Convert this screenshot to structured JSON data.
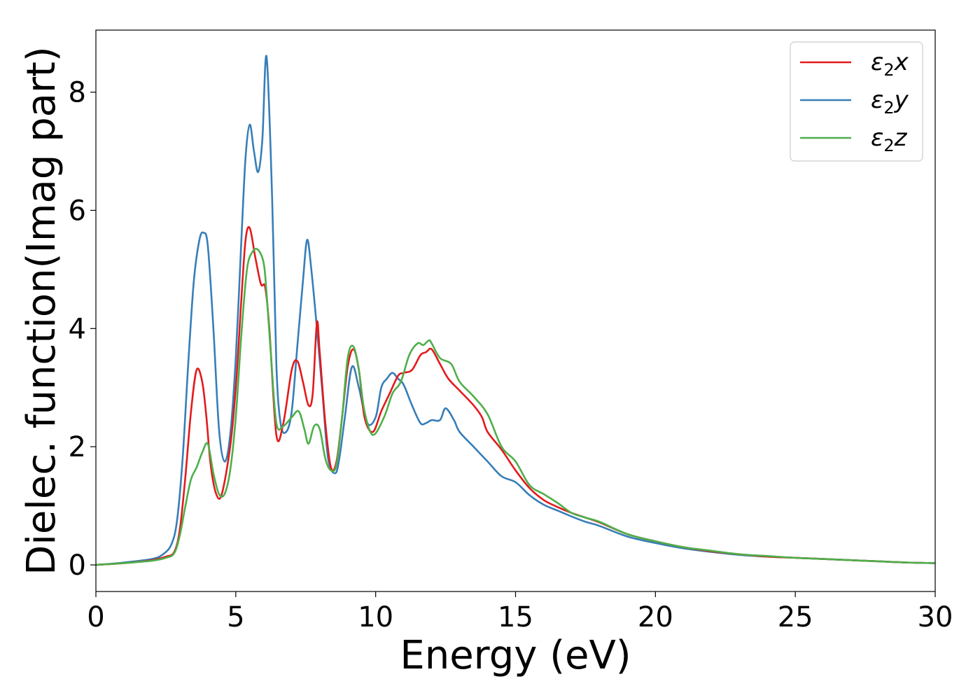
{
  "chart_data": {
    "type": "line",
    "title": "",
    "xlabel": "Energy (eV)",
    "ylabel": "Dielec. function(Imag part)",
    "xlim": [
      0,
      30
    ],
    "ylim": [
      -0.45,
      9.05
    ],
    "xticks": [
      0,
      5,
      10,
      15,
      20,
      25,
      30
    ],
    "yticks": [
      0,
      2,
      4,
      6,
      8
    ],
    "grid": false,
    "legend_position": "top-right",
    "series": [
      {
        "name": "ε2x",
        "legend_main": "ε",
        "legend_sub": "2",
        "legend_tail": "x",
        "color": "#e41a1c",
        "x": [
          0,
          1,
          2,
          2.5,
          2.8,
          3.0,
          3.2,
          3.4,
          3.6,
          3.8,
          3.95,
          4.1,
          4.3,
          4.5,
          4.8,
          5.0,
          5.2,
          5.35,
          5.5,
          5.7,
          5.9,
          6.05,
          6.2,
          6.45,
          6.7,
          7.0,
          7.2,
          7.4,
          7.6,
          7.75,
          7.9,
          8.0,
          8.2,
          8.4,
          8.6,
          8.8,
          9.0,
          9.2,
          9.4,
          9.6,
          9.9,
          10.2,
          10.5,
          10.8,
          11.0,
          11.3,
          11.6,
          11.8,
          12.0,
          12.3,
          12.6,
          13.0,
          13.5,
          13.8,
          14.0,
          14.5,
          15.0,
          15.5,
          16.0,
          16.5,
          17.0,
          17.5,
          18.0,
          19.0,
          20.0,
          21.0,
          22.0,
          23.0,
          24.0,
          25.0,
          26.0,
          27.0,
          28.0,
          29.0,
          30.0
        ],
        "values": [
          0,
          0.03,
          0.08,
          0.14,
          0.22,
          0.6,
          1.5,
          2.6,
          3.3,
          3.1,
          2.5,
          1.7,
          1.2,
          1.2,
          2.0,
          3.0,
          4.5,
          5.5,
          5.7,
          5.2,
          4.75,
          4.7,
          4.0,
          2.2,
          2.4,
          3.3,
          3.45,
          3.1,
          2.7,
          2.9,
          4.1,
          3.6,
          2.4,
          1.65,
          1.75,
          2.5,
          3.35,
          3.65,
          3.3,
          2.5,
          2.25,
          2.6,
          2.9,
          3.2,
          3.25,
          3.3,
          3.55,
          3.6,
          3.65,
          3.4,
          3.15,
          2.95,
          2.7,
          2.5,
          2.25,
          1.95,
          1.6,
          1.3,
          1.1,
          0.98,
          0.88,
          0.8,
          0.72,
          0.52,
          0.4,
          0.3,
          0.23,
          0.18,
          0.14,
          0.12,
          0.1,
          0.08,
          0.06,
          0.04,
          0.03
        ]
      },
      {
        "name": "ε2y",
        "legend_main": "ε",
        "legend_sub": "2",
        "legend_tail": "y",
        "color": "#377eb8",
        "x": [
          0,
          1,
          2,
          2.4,
          2.7,
          2.9,
          3.1,
          3.3,
          3.5,
          3.7,
          3.85,
          4.0,
          4.2,
          4.4,
          4.6,
          4.8,
          5.0,
          5.2,
          5.35,
          5.5,
          5.65,
          5.8,
          5.95,
          6.1,
          6.3,
          6.45,
          6.6,
          6.8,
          7.0,
          7.2,
          7.4,
          7.55,
          7.7,
          7.9,
          8.1,
          8.3,
          8.55,
          8.7,
          8.9,
          9.15,
          9.4,
          9.7,
          10.0,
          10.2,
          10.4,
          10.6,
          10.8,
          11.0,
          11.3,
          11.6,
          11.8,
          12.0,
          12.3,
          12.5,
          12.8,
          13.0,
          13.5,
          14.0,
          14.5,
          15.0,
          15.5,
          16.0,
          16.5,
          17.0,
          17.5,
          18.0,
          19.0,
          20.0,
          21.0,
          22.0,
          23.0,
          24.0,
          25.0,
          26.0,
          27.0,
          28.0,
          29.0,
          30.0
        ],
        "values": [
          0,
          0.04,
          0.1,
          0.18,
          0.35,
          0.75,
          1.8,
          3.4,
          4.8,
          5.5,
          5.62,
          5.4,
          4.0,
          2.3,
          1.75,
          2.2,
          3.5,
          5.5,
          6.9,
          7.45,
          7.0,
          6.65,
          7.2,
          8.6,
          6.2,
          3.4,
          2.4,
          2.25,
          2.6,
          3.7,
          4.8,
          5.5,
          5.0,
          4.0,
          2.9,
          1.8,
          1.55,
          1.8,
          2.5,
          3.35,
          3.0,
          2.4,
          2.5,
          3.0,
          3.15,
          3.25,
          3.15,
          3.05,
          2.7,
          2.4,
          2.4,
          2.45,
          2.45,
          2.65,
          2.45,
          2.25,
          2.0,
          1.75,
          1.5,
          1.4,
          1.18,
          1.02,
          0.92,
          0.82,
          0.73,
          0.66,
          0.48,
          0.37,
          0.28,
          0.22,
          0.17,
          0.14,
          0.12,
          0.1,
          0.08,
          0.06,
          0.04,
          0.03
        ]
      },
      {
        "name": "ε2z",
        "legend_main": "ε",
        "legend_sub": "2",
        "legend_tail": "z",
        "color": "#4daf4a",
        "x": [
          0,
          1,
          2,
          2.5,
          2.8,
          3.0,
          3.2,
          3.4,
          3.6,
          3.8,
          4.0,
          4.2,
          4.4,
          4.6,
          4.8,
          5.0,
          5.2,
          5.4,
          5.6,
          5.8,
          6.0,
          6.1,
          6.25,
          6.45,
          6.7,
          7.0,
          7.25,
          7.45,
          7.6,
          7.8,
          8.0,
          8.2,
          8.4,
          8.6,
          8.8,
          9.0,
          9.2,
          9.4,
          9.6,
          9.9,
          10.3,
          10.6,
          10.9,
          11.2,
          11.5,
          11.7,
          11.9,
          12.0,
          12.3,
          12.7,
          13.0,
          13.5,
          14.0,
          14.5,
          15.0,
          15.5,
          16.0,
          16.5,
          17.0,
          17.5,
          18.0,
          19.0,
          20.0,
          21.0,
          22.0,
          23.0,
          24.0,
          25.0,
          26.0,
          27.0,
          28.0,
          29.0,
          30.0
        ],
        "values": [
          0,
          0.03,
          0.07,
          0.12,
          0.2,
          0.5,
          1.0,
          1.45,
          1.65,
          1.9,
          2.05,
          1.55,
          1.2,
          1.2,
          1.6,
          2.5,
          3.9,
          5.0,
          5.3,
          5.33,
          5.1,
          4.6,
          3.6,
          2.4,
          2.35,
          2.5,
          2.6,
          2.3,
          2.05,
          2.35,
          2.3,
          1.8,
          1.6,
          1.7,
          2.5,
          3.5,
          3.7,
          3.3,
          2.6,
          2.2,
          2.5,
          2.9,
          3.1,
          3.55,
          3.75,
          3.72,
          3.8,
          3.75,
          3.5,
          3.4,
          3.1,
          2.85,
          2.55,
          2.0,
          1.75,
          1.35,
          1.2,
          1.05,
          0.88,
          0.8,
          0.73,
          0.52,
          0.4,
          0.3,
          0.24,
          0.18,
          0.15,
          0.12,
          0.1,
          0.08,
          0.06,
          0.04,
          0.03
        ]
      }
    ]
  }
}
